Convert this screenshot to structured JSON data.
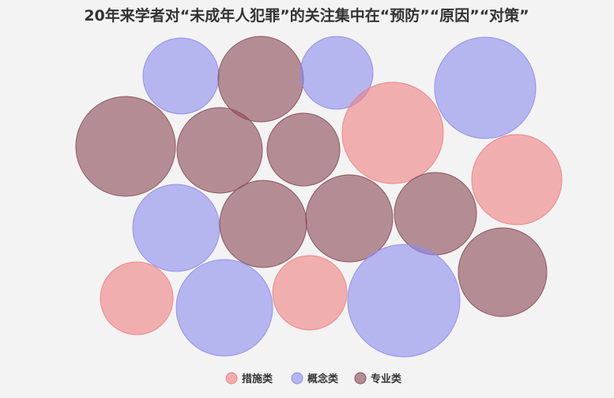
{
  "chart_data": {
    "type": "bubble",
    "title": "20年来学者对“未成年人犯罪”的关注集中在“预防”“原因”“对策”",
    "legend": [
      {
        "name": "措施类",
        "color": "#f08080"
      },
      {
        "name": "概念类",
        "color": "#8c8cee"
      },
      {
        "name": "专业类",
        "color": "#8b4a55"
      }
    ],
    "legend_position": "bottom-center",
    "bubbles": [
      {
        "category": "概念类",
        "value": 48
      },
      {
        "category": "专业类",
        "value": 54
      },
      {
        "category": "概念类",
        "value": 46
      },
      {
        "category": "概念类",
        "value": 64
      },
      {
        "category": "专业类",
        "value": 63
      },
      {
        "category": "专业类",
        "value": 54
      },
      {
        "category": "专业类",
        "value": 46
      },
      {
        "category": "措施类",
        "value": 64
      },
      {
        "category": "措施类",
        "value": 57
      },
      {
        "category": "概念类",
        "value": 55
      },
      {
        "category": "专业类",
        "value": 55
      },
      {
        "category": "专业类",
        "value": 55
      },
      {
        "category": "专业类",
        "value": 52
      },
      {
        "category": "措施类",
        "value": 46
      },
      {
        "category": "概念类",
        "value": 61
      },
      {
        "category": "措施类",
        "value": 47
      },
      {
        "category": "概念类",
        "value": 71
      },
      {
        "category": "专业类",
        "value": 56
      }
    ]
  }
}
